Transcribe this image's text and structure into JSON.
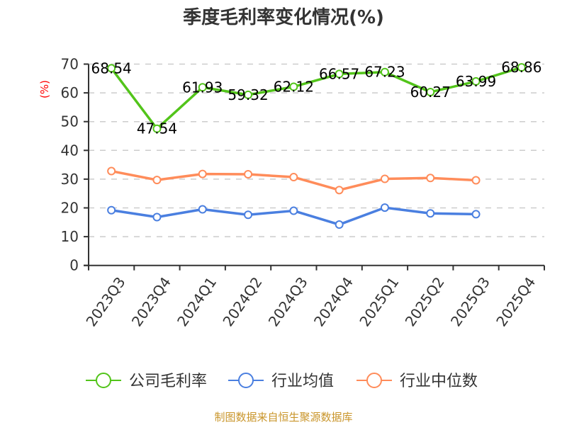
{
  "title": "季度毛利率变化情况(%)",
  "source": "制图数据来自恒生聚源数据库",
  "colors": {
    "company": "#52c41a",
    "industry_avg": "#4a7fe0",
    "industry_median": "#ff8c5a",
    "grid": "#cccccc",
    "axis": "#333333",
    "ylabel": "#ff0000",
    "source": "#c9952a"
  },
  "chart_data": {
    "type": "line",
    "title": "季度毛利率变化情况(%)",
    "xlabel": "",
    "ylabel": "(%)",
    "ylim": [
      0,
      70
    ],
    "yticks": [
      0,
      10,
      20,
      30,
      40,
      50,
      60,
      70
    ],
    "grid": true,
    "legend_position": "bottom",
    "categories": [
      "2023Q3",
      "2023Q4",
      "2024Q1",
      "2024Q2",
      "2024Q3",
      "2024Q4",
      "2025Q1",
      "2025Q2",
      "2025Q3",
      "2025Q4"
    ],
    "series": [
      {
        "name": "公司毛利率",
        "color": "#52c41a",
        "show_labels": true,
        "values": [
          68.54,
          47.54,
          61.93,
          59.32,
          62.12,
          66.57,
          67.23,
          60.27,
          63.99,
          68.86
        ]
      },
      {
        "name": "行业均值",
        "color": "#4a7fe0",
        "show_labels": false,
        "values": [
          19.2,
          16.8,
          19.5,
          17.6,
          19.0,
          14.2,
          20.1,
          18.1,
          17.8,
          null
        ]
      },
      {
        "name": "行业中位数",
        "color": "#ff8c5a",
        "show_labels": false,
        "values": [
          32.8,
          29.7,
          31.8,
          31.7,
          30.7,
          26.2,
          30.1,
          30.4,
          29.6,
          null
        ]
      }
    ]
  }
}
